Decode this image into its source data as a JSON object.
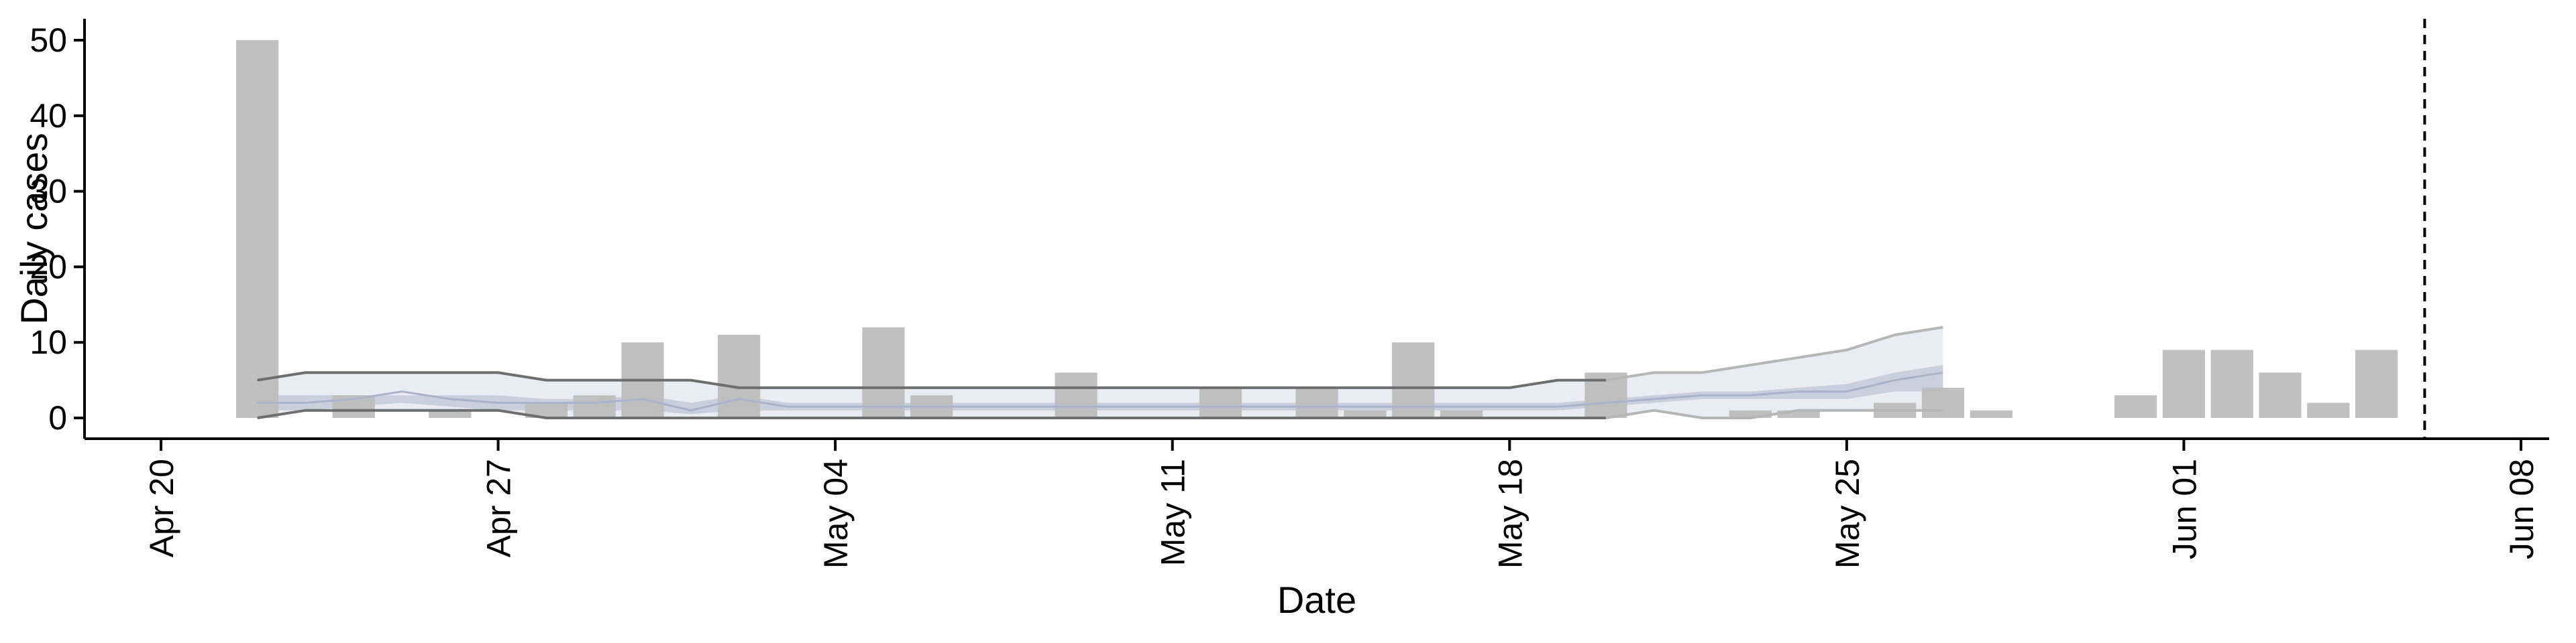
{
  "chart_data": {
    "type": "bar",
    "xlabel": "Date",
    "ylabel": "Daily cases",
    "ylim": [
      0,
      52
    ],
    "yticks": [
      0,
      10,
      20,
      30,
      40,
      50
    ],
    "xlim": [
      "2020-04-20",
      "2020-06-08"
    ],
    "xticks": [
      {
        "date": "2020-04-20",
        "label": "Apr 20"
      },
      {
        "date": "2020-04-27",
        "label": "Apr 27"
      },
      {
        "date": "2020-05-04",
        "label": "May 04"
      },
      {
        "date": "2020-05-11",
        "label": "May 11"
      },
      {
        "date": "2020-05-18",
        "label": "May 18"
      },
      {
        "date": "2020-05-25",
        "label": "May 25"
      },
      {
        "date": "2020-06-01",
        "label": "Jun 01"
      },
      {
        "date": "2020-06-08",
        "label": "Jun 08"
      }
    ],
    "grid": false,
    "vline_date": "2020-06-06",
    "cases": [
      {
        "date": "2020-04-22",
        "value": 50
      },
      {
        "date": "2020-04-24",
        "value": 3
      },
      {
        "date": "2020-04-26",
        "value": 1
      },
      {
        "date": "2020-04-28",
        "value": 2
      },
      {
        "date": "2020-04-29",
        "value": 3
      },
      {
        "date": "2020-04-30",
        "value": 10
      },
      {
        "date": "2020-05-02",
        "value": 11
      },
      {
        "date": "2020-05-05",
        "value": 12
      },
      {
        "date": "2020-05-06",
        "value": 3
      },
      {
        "date": "2020-05-09",
        "value": 6
      },
      {
        "date": "2020-05-12",
        "value": 4
      },
      {
        "date": "2020-05-14",
        "value": 4
      },
      {
        "date": "2020-05-15",
        "value": 1
      },
      {
        "date": "2020-05-16",
        "value": 10
      },
      {
        "date": "2020-05-17",
        "value": 1
      },
      {
        "date": "2020-05-20",
        "value": 6
      },
      {
        "date": "2020-05-23",
        "value": 1
      },
      {
        "date": "2020-05-24",
        "value": 1
      },
      {
        "date": "2020-05-26",
        "value": 2
      },
      {
        "date": "2020-05-27",
        "value": 4
      },
      {
        "date": "2020-05-28",
        "value": 1
      },
      {
        "date": "2020-05-31",
        "value": 3
      },
      {
        "date": "2020-06-01",
        "value": 9
      },
      {
        "date": "2020-06-02",
        "value": 9
      },
      {
        "date": "2020-06-03",
        "value": 6
      },
      {
        "date": "2020-06-04",
        "value": 2
      },
      {
        "date": "2020-06-05",
        "value": 9
      }
    ],
    "estimate": {
      "dates": [
        "2020-04-22",
        "2020-04-23",
        "2020-04-24",
        "2020-04-25",
        "2020-04-26",
        "2020-04-27",
        "2020-04-28",
        "2020-04-29",
        "2020-04-30",
        "2020-05-01",
        "2020-05-02",
        "2020-05-03",
        "2020-05-04",
        "2020-05-05",
        "2020-05-06",
        "2020-05-07",
        "2020-05-08",
        "2020-05-09",
        "2020-05-10",
        "2020-05-11",
        "2020-05-12",
        "2020-05-13",
        "2020-05-14",
        "2020-05-15",
        "2020-05-16",
        "2020-05-17",
        "2020-05-18",
        "2020-05-19",
        "2020-05-20",
        "2020-05-21",
        "2020-05-22",
        "2020-05-23",
        "2020-05-24",
        "2020-05-25",
        "2020-05-26",
        "2020-05-27"
      ],
      "outer_lower": [
        0,
        1,
        1,
        1,
        1,
        1,
        0,
        0,
        0,
        0,
        0,
        0,
        0,
        0,
        0,
        0,
        0,
        0,
        0,
        0,
        0,
        0,
        0,
        0,
        0,
        0,
        0,
        0,
        0,
        1,
        0,
        0,
        1,
        1,
        1,
        1
      ],
      "outer_upper": [
        5,
        6,
        6,
        6,
        6,
        6,
        5,
        5,
        5,
        5,
        4,
        4,
        4,
        4,
        4,
        4,
        4,
        4,
        4,
        4,
        4,
        4,
        4,
        4,
        4,
        4,
        4,
        5,
        5,
        6,
        6,
        7,
        8,
        9,
        11,
        12
      ],
      "inner_lower": [
        1,
        1,
        1.5,
        2,
        1.5,
        1,
        1,
        1,
        1,
        0.5,
        1,
        1,
        1,
        1,
        1,
        1,
        1,
        1,
        1,
        1,
        1,
        1,
        1,
        1,
        1,
        1,
        1,
        1,
        1.5,
        2,
        2.5,
        2.5,
        2.5,
        2.5,
        3.5,
        3.5
      ],
      "inner_upper": [
        3,
        3,
        3,
        3,
        3,
        3,
        2.5,
        2.5,
        3,
        2,
        3,
        2,
        2,
        2,
        2,
        2,
        2,
        2,
        2,
        2,
        2,
        2,
        2,
        2,
        2,
        2,
        2,
        2,
        2.5,
        3,
        3.5,
        3.5,
        4,
        4.5,
        6,
        7
      ],
      "mid": [
        2,
        2,
        2.5,
        3.5,
        2.5,
        2,
        2,
        2,
        2.5,
        1,
        2.5,
        1.5,
        1.5,
        1.5,
        1.5,
        1.5,
        1.5,
        1.5,
        1.5,
        1.5,
        1.5,
        1.5,
        1.5,
        1.5,
        1.5,
        1.5,
        1.5,
        1.5,
        2,
        2.5,
        3,
        3,
        3.5,
        3.5,
        5,
        6
      ],
      "estimate_until": "2020-05-20",
      "colors": {
        "band_outer": "#e6e8f1",
        "band_inner": "#c6ccdc",
        "mid": "#aab3cc",
        "bound_line": "#6e6e6e",
        "bound_line_forecast": "#b6b6b6"
      }
    },
    "colors": {
      "bar": "#bdbdbd",
      "axis": "#000000",
      "vline": "#000000"
    }
  }
}
